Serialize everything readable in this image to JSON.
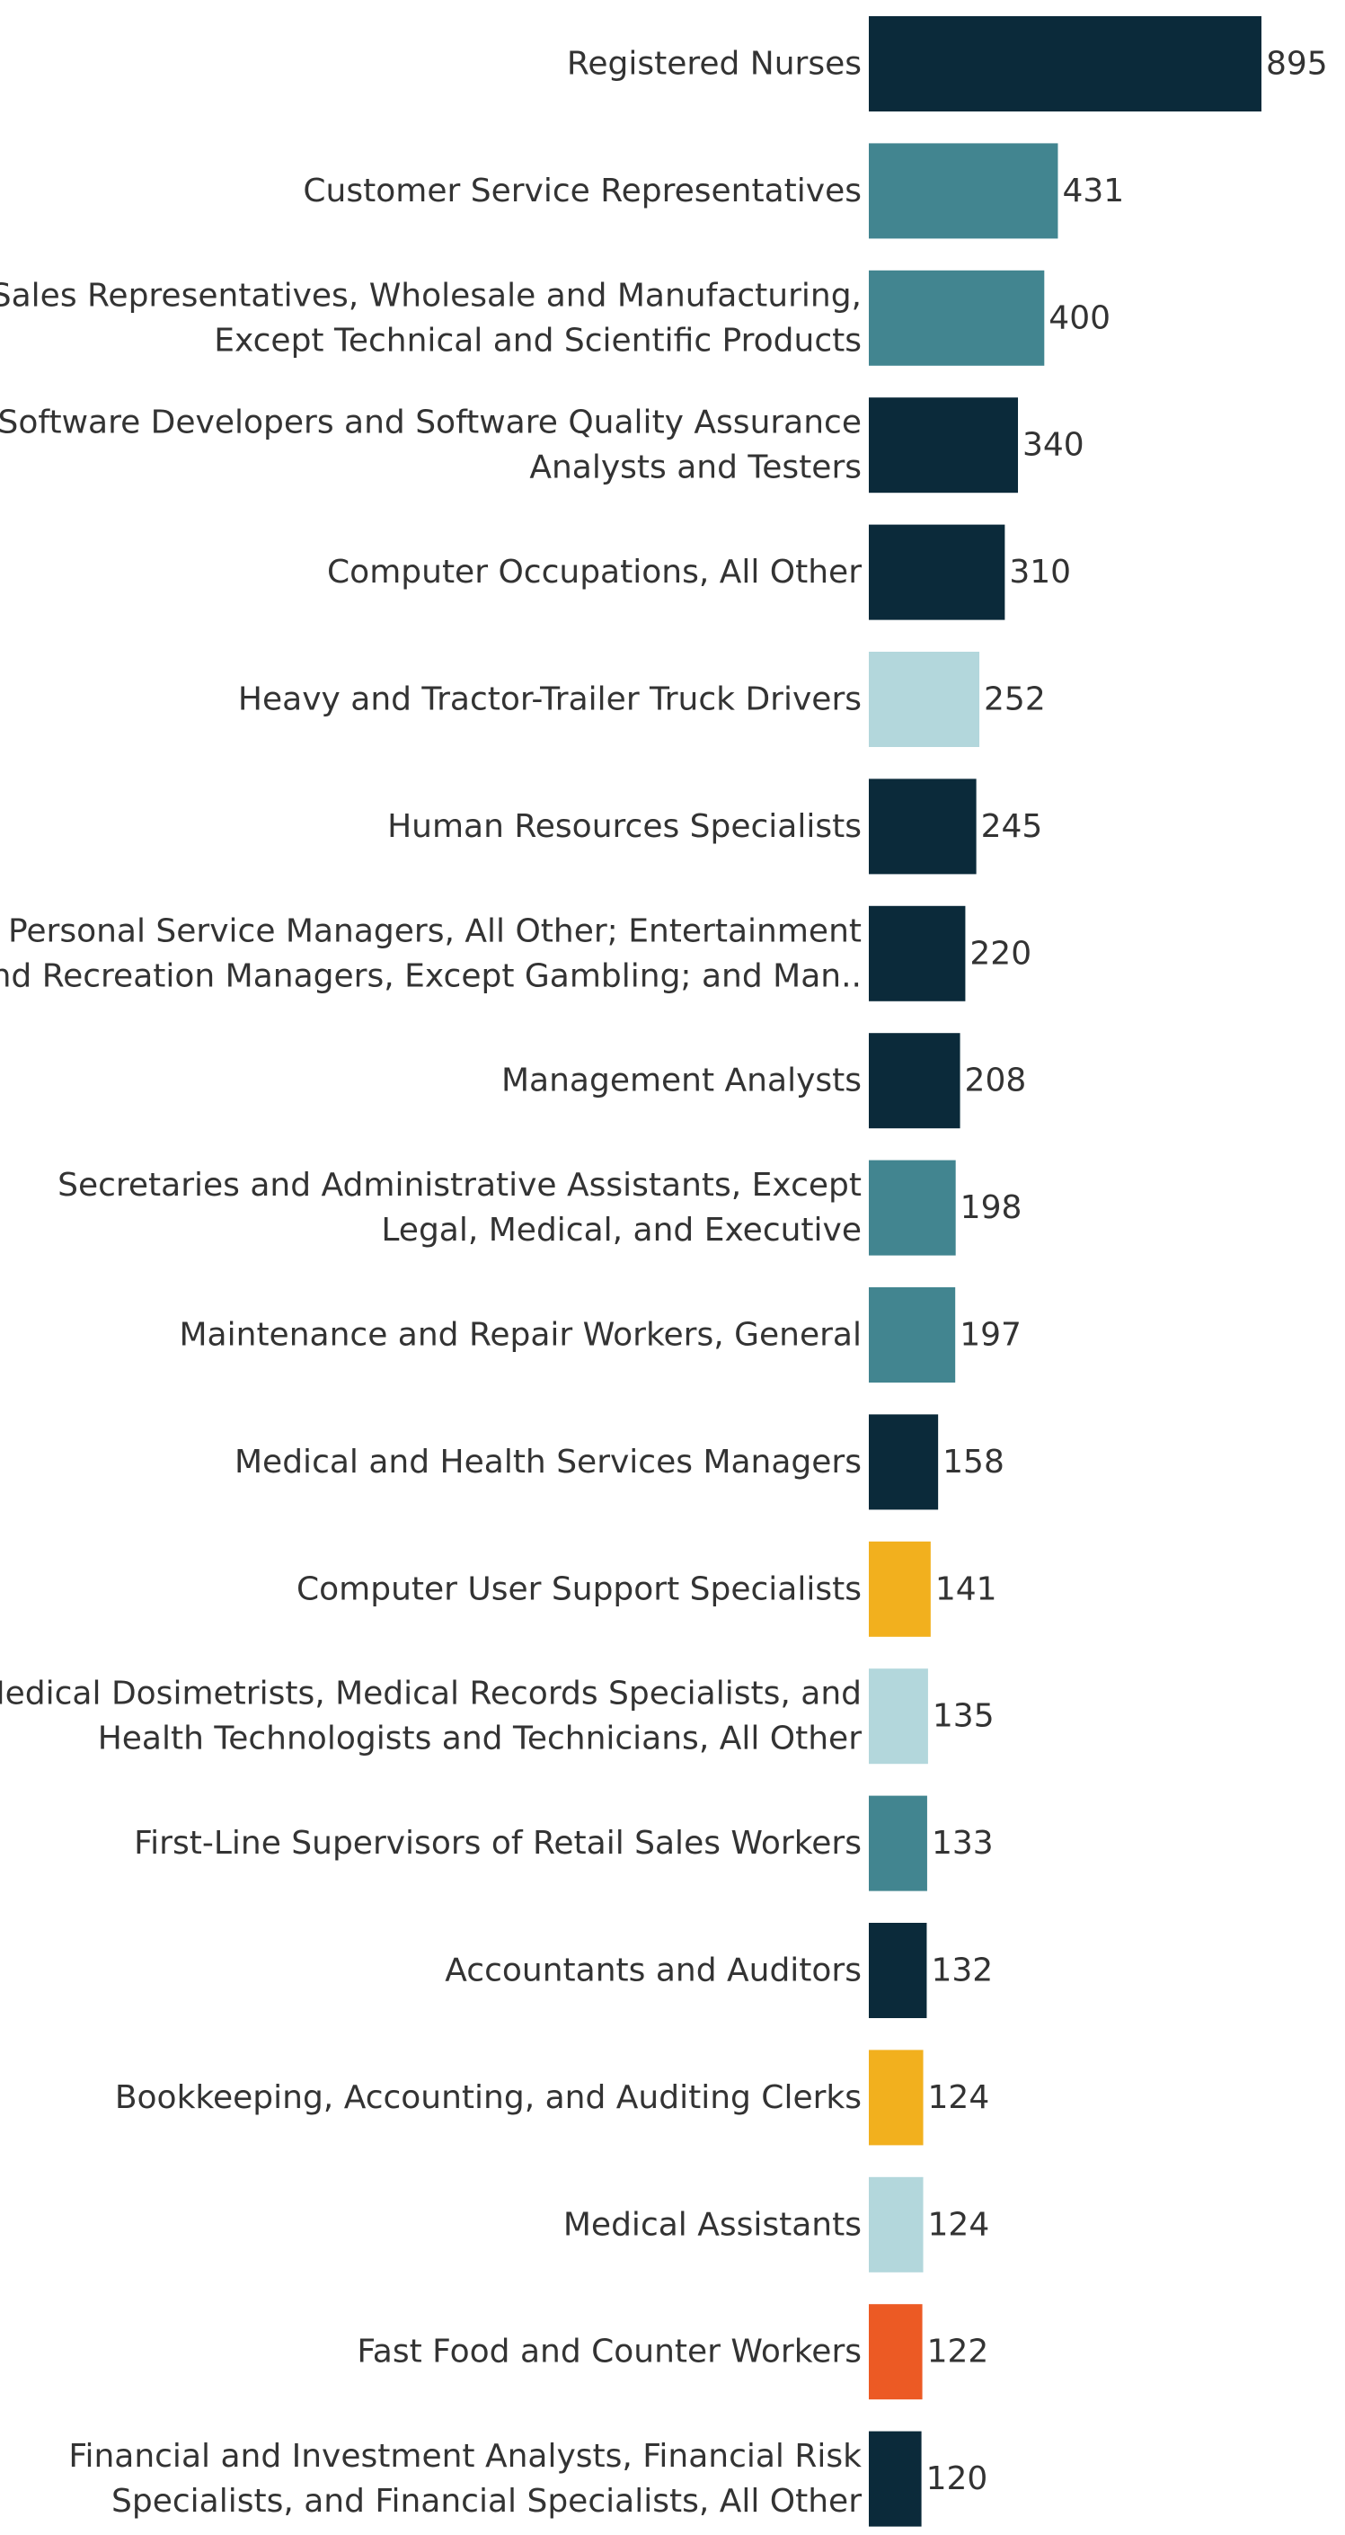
{
  "chart_data": {
    "type": "bar",
    "orientation": "horizontal",
    "title": "",
    "xlabel": "",
    "ylabel": "",
    "grid": false,
    "legend": false,
    "categories": [
      [
        "Registered Nurses"
      ],
      [
        "Customer Service Representatives"
      ],
      [
        "Sales Representatives, Wholesale and Manufacturing,",
        "Except Technical and Scientific Products"
      ],
      [
        "Software Developers and Software Quality Assurance",
        "Analysts and Testers"
      ],
      [
        "Computer Occupations, All Other"
      ],
      [
        "Heavy and Tractor-Trailer Truck Drivers"
      ],
      [
        "Human Resources Specialists"
      ],
      [
        "Personal Service Managers, All Other; Entertainment",
        "and Recreation Managers, Except Gambling; and Man.."
      ],
      [
        "Management Analysts"
      ],
      [
        "Secretaries and Administrative Assistants, Except",
        "Legal, Medical, and Executive"
      ],
      [
        "Maintenance and Repair Workers, General"
      ],
      [
        "Medical and Health Services Managers"
      ],
      [
        "Computer User Support Specialists"
      ],
      [
        "Medical Dosimetrists, Medical Records Specialists, and",
        "Health Technologists and Technicians, All Other"
      ],
      [
        "First-Line Supervisors of Retail Sales Workers"
      ],
      [
        "Accountants and Auditors"
      ],
      [
        "Bookkeeping, Accounting, and Auditing Clerks"
      ],
      [
        "Medical Assistants"
      ],
      [
        "Fast Food and Counter Workers"
      ],
      [
        "Financial and Investment Analysts, Financial Risk",
        "Specialists, and Financial Specialists, All Other"
      ]
    ],
    "values": [
      895,
      431,
      400,
      340,
      310,
      252,
      245,
      220,
      208,
      198,
      197,
      158,
      141,
      135,
      133,
      132,
      124,
      124,
      122,
      120
    ],
    "bar_colors": [
      "#0b2a3a",
      "#428590",
      "#428590",
      "#0b2a3a",
      "#0b2a3a",
      "#b3d7dc",
      "#0b2a3a",
      "#0b2a3a",
      "#0b2a3a",
      "#428590",
      "#428590",
      "#0b2a3a",
      "#f2b01e",
      "#b3d7dc",
      "#428590",
      "#0b2a3a",
      "#f2b01e",
      "#b3d7dc",
      "#ec5a24",
      "#0b2a3a"
    ],
    "xlim": [
      0,
      895
    ]
  }
}
